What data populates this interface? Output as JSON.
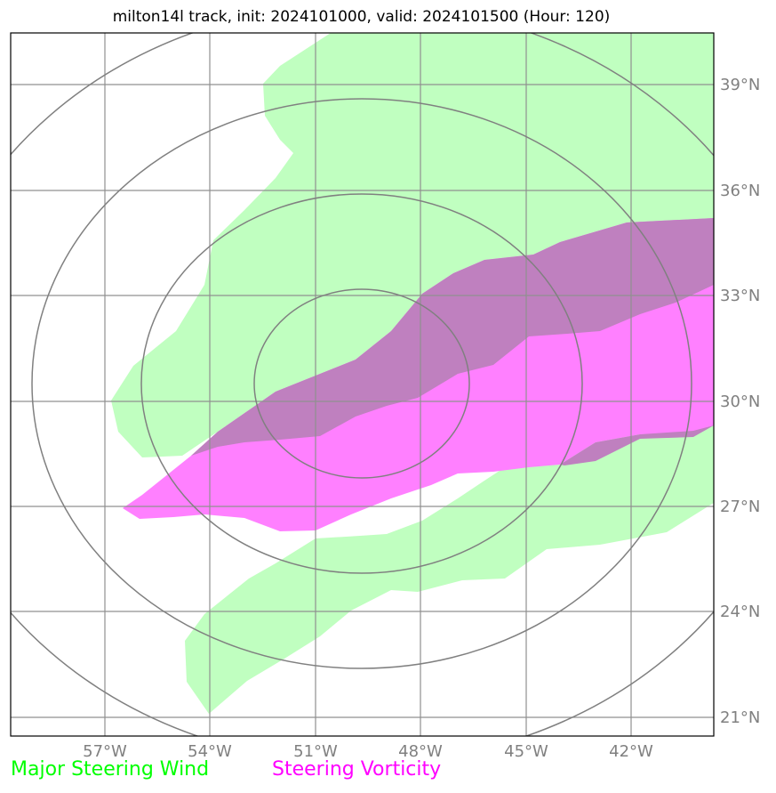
{
  "title": "milton14l track, init: 2024101000, valid: 2024101500 (Hour: 120)",
  "lat_ticks": [
    "39°N",
    "36°N",
    "33°N",
    "30°N",
    "27°N",
    "24°N",
    "21°N"
  ],
  "lon_ticks": [
    "57°W",
    "54°W",
    "51°W",
    "48°W",
    "45°W",
    "42°W"
  ],
  "legend": {
    "wind_label": "Major Steering Wind",
    "vorticity_label": "Steering Vorticity"
  },
  "colors": {
    "wind_fill": "#c0ffc0",
    "vorticity_fill": "#ff80ff",
    "overlap_fill": "#bf80bf",
    "wind_legend": "#00ff00",
    "vorticity_legend": "#ff00ff",
    "grid": "#909090",
    "rings": "#808080"
  }
}
